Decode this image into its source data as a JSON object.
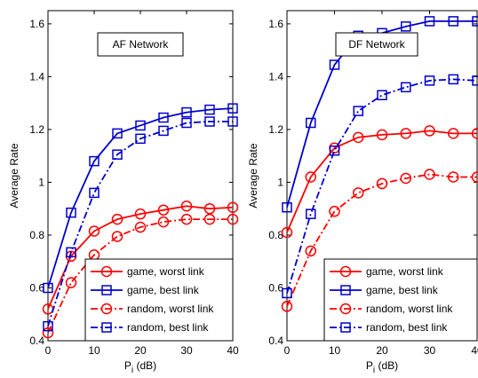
{
  "chart_data": [
    {
      "type": "line",
      "annotation": "AF Network",
      "xlabel_main": "P",
      "xlabel_sub": "i",
      "xlabel_unit": " (dB)",
      "ylabel": "Average Rate",
      "xlim": [
        0,
        40
      ],
      "ylim": [
        0.4,
        1.65
      ],
      "xticks": [
        0,
        10,
        20,
        30,
        40
      ],
      "yticks": [
        0.4,
        0.6,
        0.8,
        1.0,
        1.2,
        1.4,
        1.6
      ],
      "ytick_labels": [
        "0.4",
        "0.6",
        "0.8",
        "1",
        "1.2",
        "1.4",
        "1.6"
      ],
      "grid": false,
      "legend_position": "bottom-right",
      "x": [
        0,
        5,
        10,
        15,
        20,
        25,
        30,
        35,
        40
      ],
      "series": [
        {
          "name": "game, worst link",
          "color": "#ff0000",
          "marker": "circle",
          "dash": "solid",
          "values": [
            0.52,
            0.72,
            0.815,
            0.86,
            0.88,
            0.895,
            0.91,
            0.9,
            0.905
          ]
        },
        {
          "name": "game, best link",
          "color": "#0000cc",
          "marker": "square",
          "dash": "solid",
          "values": [
            0.6,
            0.885,
            1.08,
            1.185,
            1.215,
            1.245,
            1.265,
            1.275,
            1.28
          ]
        },
        {
          "name": "random, worst link",
          "color": "#ff0000",
          "marker": "circle",
          "dash": "dashdot",
          "values": [
            0.43,
            0.62,
            0.725,
            0.795,
            0.83,
            0.85,
            0.86,
            0.86,
            0.86
          ]
        },
        {
          "name": "random, best link",
          "color": "#0000cc",
          "marker": "square",
          "dash": "dashdot",
          "values": [
            0.455,
            0.735,
            0.96,
            1.105,
            1.165,
            1.195,
            1.225,
            1.23,
            1.23
          ]
        }
      ]
    },
    {
      "type": "line",
      "annotation": "DF Network",
      "xlabel_main": "P",
      "xlabel_sub": "i",
      "xlabel_unit": " (dB)",
      "ylabel": "Average Rate",
      "xlim": [
        0,
        40
      ],
      "ylim": [
        0.4,
        1.65
      ],
      "xticks": [
        0,
        10,
        20,
        30,
        40
      ],
      "yticks": [
        0.4,
        0.6,
        0.8,
        1.0,
        1.2,
        1.4,
        1.6
      ],
      "ytick_labels": [
        "0.4",
        "0.6",
        "0.8",
        "1",
        "1.2",
        "1.4",
        "1.6"
      ],
      "grid": false,
      "legend_position": "bottom-right",
      "x": [
        0,
        5,
        10,
        15,
        20,
        25,
        30,
        35,
        40
      ],
      "series": [
        {
          "name": "game, worst link",
          "color": "#ff0000",
          "marker": "circle",
          "dash": "solid",
          "values": [
            0.81,
            1.02,
            1.13,
            1.17,
            1.18,
            1.185,
            1.195,
            1.185,
            1.185
          ]
        },
        {
          "name": "game, best link",
          "color": "#0000cc",
          "marker": "square",
          "dash": "solid",
          "values": [
            0.905,
            1.225,
            1.445,
            1.555,
            1.565,
            1.59,
            1.61,
            1.61,
            1.61
          ]
        },
        {
          "name": "random, worst link",
          "color": "#ff0000",
          "marker": "circle",
          "dash": "dashdot",
          "values": [
            0.53,
            0.74,
            0.89,
            0.96,
            0.995,
            1.015,
            1.03,
            1.02,
            1.02
          ]
        },
        {
          "name": "random, best link",
          "color": "#0000cc",
          "marker": "square",
          "dash": "dashdot",
          "values": [
            0.58,
            0.88,
            1.12,
            1.27,
            1.33,
            1.36,
            1.385,
            1.39,
            1.385
          ]
        }
      ]
    }
  ]
}
